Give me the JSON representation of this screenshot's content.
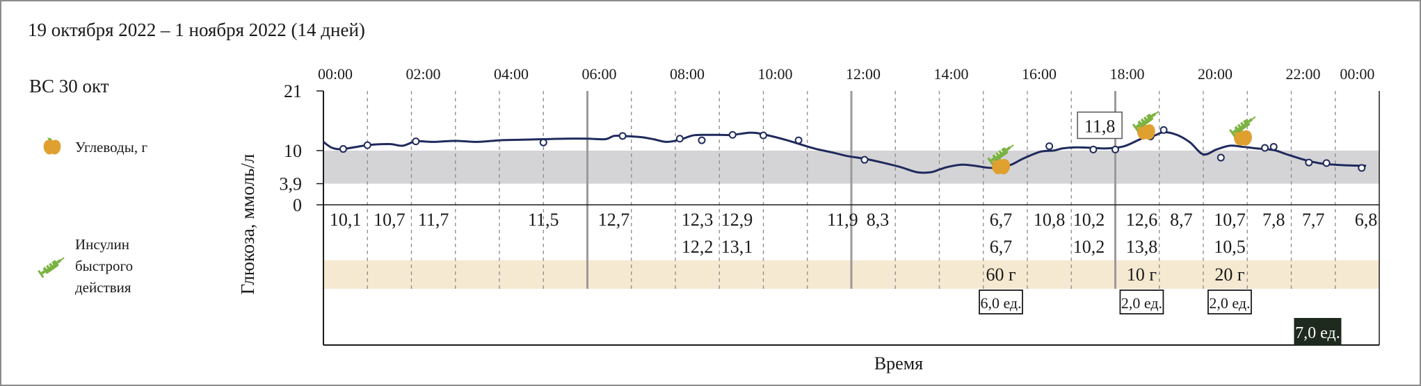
{
  "header": {
    "date_range": "19 октября 2022 – 1 ноября 2022 (14 дней)"
  },
  "day_label": "ВС 30 окт",
  "legend": [
    {
      "label": "Углеводы, г",
      "icon": "apple-icon",
      "color": "#e0a030"
    },
    {
      "label": "Инсулин быстрого действия",
      "lines": [
        "Инсулин",
        "быстрого",
        "действия"
      ],
      "icon": "syringe-icon",
      "color": "#7bb342"
    }
  ],
  "colors": {
    "line": "#1f2a5c",
    "target_band": "#d4d4d6",
    "carb_band": "#f5e9d1",
    "grid_major": "#9a9a9a",
    "grid_minor": "#8a8a8a",
    "basal_box": "#1f2a1f"
  },
  "chart_data": {
    "type": "line",
    "xlabel": "Время",
    "ylabel": "Глюкоза, ммоль/л",
    "x_ticks": [
      "00:00",
      "02:00",
      "04:00",
      "06:00",
      "08:00",
      "10:00",
      "12:00",
      "14:00",
      "16:00",
      "18:00",
      "20:00",
      "22:00",
      "00:00"
    ],
    "y_ticks": [
      "0",
      "3,9",
      "10",
      "21"
    ],
    "ylim": [
      0,
      21
    ],
    "target_range": [
      3.9,
      10
    ],
    "series": [
      {
        "x": [
          0,
          0.2,
          0.45,
          1,
          1.5,
          1.8,
          2.1,
          2.5,
          3.0,
          3.5,
          4.0,
          4.5,
          5.0,
          5.5,
          6.0,
          6.4,
          6.6,
          6.8,
          7.2,
          7.5,
          7.8,
          8.1,
          8.4,
          8.7,
          9.0,
          9.3,
          9.7,
          10.0,
          10.5,
          10.9,
          11.2,
          11.6,
          11.9,
          12.3,
          12.7,
          13.1,
          13.5,
          13.8,
          14.0,
          14.2,
          14.5,
          14.8,
          15.2,
          15.6,
          15.9,
          16.3,
          16.6,
          16.8,
          17.1,
          17.5,
          17.8,
          18.2,
          18.6,
          18.9,
          19.1,
          19.4,
          19.7,
          20.0,
          20.3,
          20.6,
          20.9,
          21.2,
          21.6,
          21.9,
          22.3,
          22.7,
          23.2,
          23.7
        ],
        "y": [
          11.6,
          10.5,
          10.3,
          11.0,
          11.2,
          10.9,
          11.7,
          11.6,
          11.8,
          11.6,
          11.9,
          12.0,
          12.1,
          12.2,
          12.2,
          12.1,
          12.7,
          12.7,
          12.5,
          12.1,
          11.6,
          12.0,
          12.8,
          12.9,
          12.9,
          12.9,
          13.3,
          13.0,
          12.0,
          11.0,
          10.3,
          9.6,
          9.0,
          8.5,
          7.8,
          7.0,
          6.0,
          6.0,
          6.5,
          7.0,
          7.4,
          7.2,
          6.8,
          7.3,
          8.5,
          9.8,
          10.0,
          10.4,
          10.6,
          10.5,
          10.4,
          10.8,
          12.2,
          12.8,
          13.4,
          12.9,
          11.5,
          9.3,
          10.2,
          10.9,
          10.7,
          10.4,
          10.1,
          9.3,
          8.3,
          7.6,
          7.3,
          7.2
        ]
      }
    ],
    "points": [
      {
        "x": 0.45,
        "y": 10.3
      },
      {
        "x": 1.0,
        "y": 11.0
      },
      {
        "x": 2.1,
        "y": 11.7
      },
      {
        "x": 5.0,
        "y": 11.5
      },
      {
        "x": 6.8,
        "y": 12.7
      },
      {
        "x": 8.1,
        "y": 12.2
      },
      {
        "x": 8.6,
        "y": 11.9
      },
      {
        "x": 9.3,
        "y": 12.9
      },
      {
        "x": 10.0,
        "y": 12.8
      },
      {
        "x": 10.8,
        "y": 11.9
      },
      {
        "x": 12.3,
        "y": 8.3
      },
      {
        "x": 15.4,
        "y": 6.7
      },
      {
        "x": 16.5,
        "y": 10.8
      },
      {
        "x": 17.5,
        "y": 10.2
      },
      {
        "x": 18.0,
        "y": 10.2
      },
      {
        "x": 18.8,
        "y": 12.6
      },
      {
        "x": 19.1,
        "y": 13.8
      },
      {
        "x": 20.4,
        "y": 8.7
      },
      {
        "x": 21.6,
        "y": 10.7
      },
      {
        "x": 21.4,
        "y": 10.5
      },
      {
        "x": 22.4,
        "y": 7.8
      },
      {
        "x": 22.8,
        "y": 7.7
      },
      {
        "x": 23.6,
        "y": 6.8
      }
    ],
    "annotation": {
      "label": "11,8",
      "x": 18.2,
      "y": 13.0
    },
    "readings_row1": [
      {
        "x": 0.5,
        "label": "10,1"
      },
      {
        "x": 1.5,
        "label": "10,7"
      },
      {
        "x": 2.5,
        "label": "11,7"
      },
      {
        "x": 5.0,
        "label": "11,5"
      },
      {
        "x": 6.6,
        "label": "12,7"
      },
      {
        "x": 8.5,
        "label": "12,3"
      },
      {
        "x": 9.4,
        "label": "12,9"
      },
      {
        "x": 11.8,
        "label": "11,9"
      },
      {
        "x": 12.6,
        "label": "8,3"
      },
      {
        "x": 15.4,
        "label": "6,7"
      },
      {
        "x": 16.5,
        "label": "10,8"
      },
      {
        "x": 17.4,
        "label": "10,2"
      },
      {
        "x": 18.6,
        "label": "12,6"
      },
      {
        "x": 19.5,
        "label": "8,7"
      },
      {
        "x": 20.6,
        "label": "10,7"
      },
      {
        "x": 21.6,
        "label": "7,8"
      },
      {
        "x": 22.5,
        "label": "7,7"
      },
      {
        "x": 23.7,
        "label": "6,8"
      }
    ],
    "readings_row2": [
      {
        "x": 15.4,
        "label": "6,7"
      },
      {
        "x": 8.5,
        "label": "12,2"
      },
      {
        "x": 9.4,
        "label": "13,1"
      },
      {
        "x": 17.4,
        "label": "10,2"
      },
      {
        "x": 18.6,
        "label": "13,8"
      },
      {
        "x": 20.6,
        "label": "10,5"
      }
    ],
    "carbs": [
      {
        "x": 15.4,
        "label": "60 г"
      },
      {
        "x": 18.6,
        "label": "10 г"
      },
      {
        "x": 20.6,
        "label": "20 г"
      }
    ],
    "bolus": [
      {
        "x": 15.4,
        "label": "6,0 ед."
      },
      {
        "x": 18.6,
        "label": "2,0 ед."
      },
      {
        "x": 20.6,
        "label": "2,0 ед."
      }
    ],
    "basal": [
      {
        "x": 22.6,
        "label": "7,0 ед."
      }
    ],
    "apple_icons": [
      {
        "x": 15.4,
        "y": 7.3
      },
      {
        "x": 18.7,
        "y": 13.7
      },
      {
        "x": 20.9,
        "y": 12.6
      }
    ],
    "syringe_icons": [
      {
        "x": 15.4,
        "y": 9.4
      },
      {
        "x": 18.7,
        "y": 15.6
      },
      {
        "x": 20.9,
        "y": 14.6
      }
    ]
  }
}
